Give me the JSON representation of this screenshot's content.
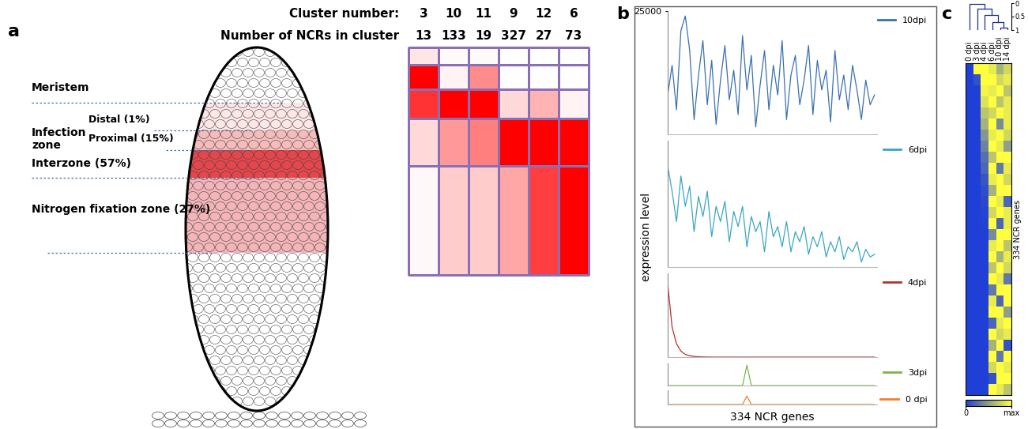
{
  "panel_labels": [
    "a",
    "b",
    "c"
  ],
  "diagram": {
    "zones": [
      "Meristem",
      "Distal (1%)",
      "Proximal (15%)",
      "Interzone (57%)",
      "Nitrogen fixation zone (27%)"
    ],
    "zone_group": "Infection\nzone",
    "cluster_table": {
      "header_label": "Cluster number:",
      "count_label": "Number of NCRs in cluster",
      "clusters": [
        3,
        10,
        11,
        9,
        12,
        6
      ],
      "counts": [
        13,
        133,
        19,
        327,
        27,
        73
      ],
      "intensity": [
        [
          0.1,
          1.0,
          0.8,
          0.15,
          0.03
        ],
        [
          0.02,
          0.05,
          1.0,
          0.4,
          0.2
        ],
        [
          0.02,
          0.45,
          1.0,
          0.5,
          0.2
        ],
        [
          0.0,
          0.0,
          0.15,
          1.0,
          0.35
        ],
        [
          0.0,
          0.0,
          0.3,
          1.0,
          0.75
        ],
        [
          0.0,
          0.0,
          0.05,
          1.0,
          1.0
        ]
      ]
    }
  },
  "axis_labels": {
    "y": "expression level",
    "x": "334 NCR genes"
  },
  "chart_data": [
    {
      "type": "line",
      "xlim": [
        1,
        334
      ],
      "ylim": [
        0,
        25000
      ],
      "yticks": [
        25000
      ],
      "tick_labels": "y",
      "legend": "upper right",
      "x": [
        1,
        8,
        15,
        22,
        29,
        36,
        43,
        50,
        57,
        64,
        71,
        78,
        85,
        92,
        99,
        106,
        113,
        120,
        127,
        134,
        141,
        148,
        155,
        162,
        169,
        176,
        183,
        190,
        197,
        204,
        211,
        218,
        225,
        232,
        239,
        246,
        253,
        260,
        267,
        274,
        281,
        288,
        295,
        302,
        309,
        316,
        323,
        330
      ],
      "series": [
        {
          "name": "10dpi",
          "color": "#3a6fb0",
          "values": [
            8000,
            14000,
            5000,
            21000,
            24000,
            17000,
            3000,
            12000,
            19000,
            6000,
            15000,
            2000,
            11000,
            18000,
            7000,
            13000,
            4000,
            20000,
            9000,
            16000,
            1500,
            10000,
            17000,
            5000,
            14000,
            8000,
            19000,
            3000,
            12000,
            16000,
            6000,
            11000,
            18000,
            4000,
            15000,
            9000,
            13000,
            2500,
            17000,
            7000,
            12000,
            5000,
            14000,
            9000,
            3000,
            11000,
            6000,
            8000
          ]
        }
      ]
    },
    {
      "type": "line",
      "xlim": [
        1,
        334
      ],
      "ylim": [
        0,
        25000
      ],
      "tick_labels": false,
      "legend": "upper right",
      "x": [
        1,
        8,
        15,
        22,
        29,
        36,
        43,
        50,
        57,
        64,
        71,
        78,
        85,
        92,
        99,
        106,
        113,
        120,
        127,
        134,
        141,
        148,
        155,
        162,
        169,
        176,
        183,
        190,
        197,
        204,
        211,
        218,
        225,
        232,
        239,
        246,
        253,
        260,
        267,
        274,
        281,
        288,
        295,
        302,
        309,
        316,
        323,
        330
      ],
      "series": [
        {
          "name": "6dpi",
          "color": "#3aa6c4",
          "values": [
            20000,
            15000,
            9000,
            18000,
            12000,
            16000,
            7000,
            14000,
            10000,
            15000,
            6000,
            12000,
            9000,
            13000,
            5000,
            11000,
            8000,
            12000,
            4000,
            10000,
            7000,
            9000,
            3000,
            11000,
            6000,
            8000,
            4000,
            9000,
            3000,
            7000,
            5000,
            8000,
            2500,
            6000,
            4000,
            7000,
            2000,
            5000,
            3000,
            6000,
            1500,
            4000,
            3000,
            5000,
            1000,
            3500,
            2000,
            2500
          ]
        }
      ]
    },
    {
      "type": "line",
      "xlim": [
        1,
        334
      ],
      "ylim": [
        0,
        25000
      ],
      "tick_labels": false,
      "legend": "upper right",
      "x": [
        1,
        8,
        15,
        22,
        29,
        36,
        43,
        50,
        57,
        64,
        71,
        78,
        85,
        92,
        99,
        106,
        113,
        120,
        127,
        134,
        141,
        148,
        155,
        162,
        169,
        176,
        183,
        190,
        197,
        204,
        211,
        218,
        225,
        232,
        239,
        246,
        253,
        260,
        267,
        274,
        281,
        288,
        295,
        302,
        309,
        316,
        323,
        330
      ],
      "series": [
        {
          "name": "4dpi",
          "color": "#b5302e",
          "values": [
            22000,
            9000,
            4000,
            1800,
            800,
            400,
            200,
            100,
            50,
            20,
            0,
            0,
            0,
            0,
            0,
            0,
            0,
            0,
            0,
            0,
            0,
            0,
            0,
            0,
            0,
            0,
            0,
            0,
            0,
            0,
            0,
            0,
            0,
            0,
            0,
            0,
            0,
            0,
            0,
            0,
            0,
            0,
            0,
            0,
            0,
            0,
            0,
            0
          ]
        }
      ]
    },
    {
      "type": "line",
      "xlim": [
        1,
        334
      ],
      "ylim": [
        0,
        25000
      ],
      "tick_labels": false,
      "legend": "upper right",
      "x": [
        1,
        8,
        15,
        22,
        29,
        36,
        43,
        50,
        57,
        64,
        71,
        78,
        85,
        92,
        99,
        106,
        113,
        120,
        127,
        134,
        141,
        148,
        155,
        162,
        169,
        176,
        183,
        190,
        197,
        204,
        211,
        218,
        225,
        232,
        239,
        246,
        253,
        260,
        267,
        274,
        281,
        288,
        295,
        302,
        309,
        316,
        323,
        330
      ],
      "series": [
        {
          "name": "3dpi",
          "color": "#7ab648",
          "values": [
            0,
            0,
            0,
            0,
            0,
            0,
            0,
            0,
            0,
            0,
            0,
            0,
            0,
            0,
            0,
            0,
            0,
            0,
            23000,
            0,
            0,
            0,
            0,
            0,
            0,
            0,
            0,
            0,
            0,
            0,
            0,
            0,
            0,
            0,
            0,
            0,
            0,
            0,
            0,
            0,
            0,
            0,
            0,
            0,
            0,
            0,
            0,
            0
          ]
        }
      ]
    },
    {
      "type": "line",
      "xlim": [
        1,
        334
      ],
      "ylim": [
        0,
        25000
      ],
      "tick_labels": false,
      "legend": "upper right",
      "x": [
        1,
        8,
        15,
        22,
        29,
        36,
        43,
        50,
        57,
        64,
        71,
        78,
        85,
        92,
        99,
        106,
        113,
        120,
        127,
        134,
        141,
        148,
        155,
        162,
        169,
        176,
        183,
        190,
        197,
        204,
        211,
        218,
        225,
        232,
        239,
        246,
        253,
        260,
        267,
        274,
        281,
        288,
        295,
        302,
        309,
        316,
        323,
        330
      ],
      "series": [
        {
          "name": "0 dpi",
          "color": "#f07f2a",
          "values": [
            0,
            0,
            0,
            0,
            0,
            0,
            0,
            0,
            0,
            0,
            0,
            0,
            0,
            0,
            0,
            0,
            0,
            0,
            15000,
            0,
            0,
            0,
            0,
            0,
            0,
            0,
            0,
            0,
            0,
            0,
            0,
            0,
            0,
            0,
            0,
            0,
            0,
            0,
            0,
            0,
            0,
            0,
            0,
            0,
            0,
            0,
            0,
            0
          ]
        }
      ]
    },
    {
      "type": "heatmap",
      "columns": [
        "0 dpi",
        "3 dpi",
        "4 dpi",
        "6 dpi",
        "10 dpi",
        "14 dpi"
      ],
      "ylabel": "334 NCR genes",
      "cells": [
        [
          0,
          1,
          1,
          0.9,
          0.6,
          0.8
        ],
        [
          0,
          0.1,
          1,
          1,
          0.8,
          0.9
        ],
        [
          0,
          0,
          0.95,
          0.9,
          1,
          0.7
        ],
        [
          0,
          0,
          0.85,
          1,
          0.7,
          0.9
        ],
        [
          0,
          0,
          0.7,
          0.8,
          1,
          0.9
        ],
        [
          0,
          0,
          0.6,
          1,
          0.4,
          0.9
        ],
        [
          0,
          0,
          0.45,
          0.9,
          1,
          0.8
        ],
        [
          0,
          0,
          0.35,
          1,
          0.9,
          0.5
        ],
        [
          0,
          0,
          0.25,
          0.7,
          1,
          1
        ],
        [
          0,
          0,
          0.2,
          1,
          0.3,
          0.9
        ],
        [
          0,
          0,
          0.12,
          0.9,
          1,
          0.8
        ],
        [
          0,
          0,
          0.08,
          0.6,
          1,
          1
        ],
        [
          0,
          0,
          0.05,
          1,
          0.9,
          0.2
        ],
        [
          0,
          0,
          0.03,
          0.8,
          1,
          0.9
        ],
        [
          0,
          0,
          0.02,
          1,
          0.2,
          0.9
        ],
        [
          0,
          0,
          0.01,
          0.4,
          1,
          1
        ],
        [
          0,
          0,
          0,
          0.9,
          1,
          0.7
        ],
        [
          0,
          0,
          0,
          1,
          0.6,
          0.9
        ],
        [
          0,
          0,
          0,
          0.7,
          1,
          0.8
        ],
        [
          0,
          0,
          0,
          1,
          0.9,
          0.3
        ],
        [
          0,
          0,
          0,
          0.3,
          1,
          1
        ],
        [
          0,
          0,
          0,
          0.9,
          0.2,
          1
        ],
        [
          0,
          0,
          0,
          1,
          1,
          0.5
        ],
        [
          0,
          0,
          0,
          0.2,
          0.9,
          1
        ],
        [
          0,
          0,
          0,
          1,
          0.8,
          0.9
        ],
        [
          0,
          0,
          0,
          0.6,
          1,
          0.1
        ],
        [
          0,
          0,
          0,
          1,
          0.3,
          1
        ],
        [
          0,
          0,
          0,
          0.8,
          1,
          0.9
        ],
        [
          0,
          0,
          0,
          0.1,
          1,
          1
        ],
        [
          0,
          0,
          0,
          1,
          0.9,
          0.7
        ]
      ],
      "colorbar": {
        "range": [
          0,
          1
        ],
        "ticks": [
          0,
          {
            "value": 1,
            "label": "max"
          }
        ]
      },
      "dendrogram": {
        "ylim": [
          1,
          0
        ],
        "yticks": [
          0,
          0.5,
          1
        ],
        "merges": [
          {
            "left": 4,
            "right": 5,
            "height": 0.9
          },
          {
            "left": 3,
            "right": 6,
            "height": 0.7
          },
          {
            "left": 2,
            "right": 7,
            "height": 0.45
          },
          {
            "left": 1,
            "right": 8,
            "height": 0.2
          },
          {
            "left": 0,
            "right": 9,
            "height": 0.02
          }
        ]
      }
    }
  ]
}
